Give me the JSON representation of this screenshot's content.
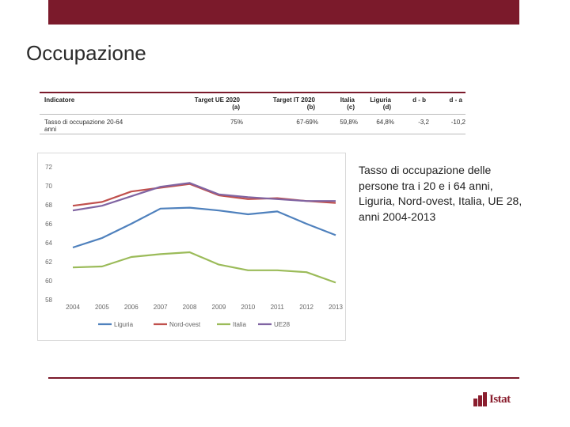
{
  "slide": {
    "title": "Occupazione"
  },
  "table": {
    "headers": [
      {
        "line1": "Indicatore",
        "line2": ""
      },
      {
        "line1": "Target UE 2020",
        "line2": "(a)"
      },
      {
        "line1": "Target IT 2020",
        "line2": "(b)"
      },
      {
        "line1": "Italia",
        "line2": "(c)"
      },
      {
        "line1": "Liguria",
        "line2": "(d)"
      },
      {
        "line1": "d - b",
        "line2": ""
      },
      {
        "line1": "d - a",
        "line2": ""
      }
    ],
    "row": {
      "indicator_line1": "Tasso    di    occupazione    20-64",
      "indicator_line2": "anni",
      "target_ue": "75%",
      "target_it": "67-69%",
      "italia": "59,8%",
      "liguria": "64,8%",
      "d_minus_b": "-3,2",
      "d_minus_a": "-10,2"
    }
  },
  "caption": "Tasso di occupazione delle persone tra i 20 e i 64 anni, Liguria, Nord-ovest, Italia, UE 28, anni 2004-2013",
  "logo": {
    "text": "Istat"
  },
  "chart_data": {
    "type": "line",
    "title": "",
    "xlabel": "",
    "ylabel": "",
    "x": [
      "2004",
      "2005",
      "2006",
      "2007",
      "2008",
      "2009",
      "2010",
      "2011",
      "2012",
      "2013"
    ],
    "ylim": [
      58,
      72
    ],
    "yticks": [
      58,
      60,
      62,
      64,
      66,
      68,
      70,
      72
    ],
    "grid": false,
    "legend_position": "bottom",
    "series": [
      {
        "name": "Liguria",
        "color": "#4f81bd",
        "values": [
          63.5,
          64.5,
          66.0,
          67.6,
          67.7,
          67.4,
          67.0,
          67.3,
          66.0,
          64.8
        ]
      },
      {
        "name": "Nord-ovest",
        "color": "#c0504d",
        "values": [
          67.9,
          68.3,
          69.4,
          69.8,
          70.2,
          69.0,
          68.6,
          68.7,
          68.4,
          68.2
        ]
      },
      {
        "name": "Italia",
        "color": "#9bbb59",
        "values": [
          61.4,
          61.5,
          62.5,
          62.8,
          63.0,
          61.7,
          61.1,
          61.1,
          60.9,
          59.8
        ]
      },
      {
        "name": "UE28",
        "color": "#8064a2",
        "values": [
          67.4,
          67.9,
          68.9,
          69.9,
          70.3,
          69.1,
          68.8,
          68.6,
          68.4,
          68.4
        ]
      }
    ]
  }
}
